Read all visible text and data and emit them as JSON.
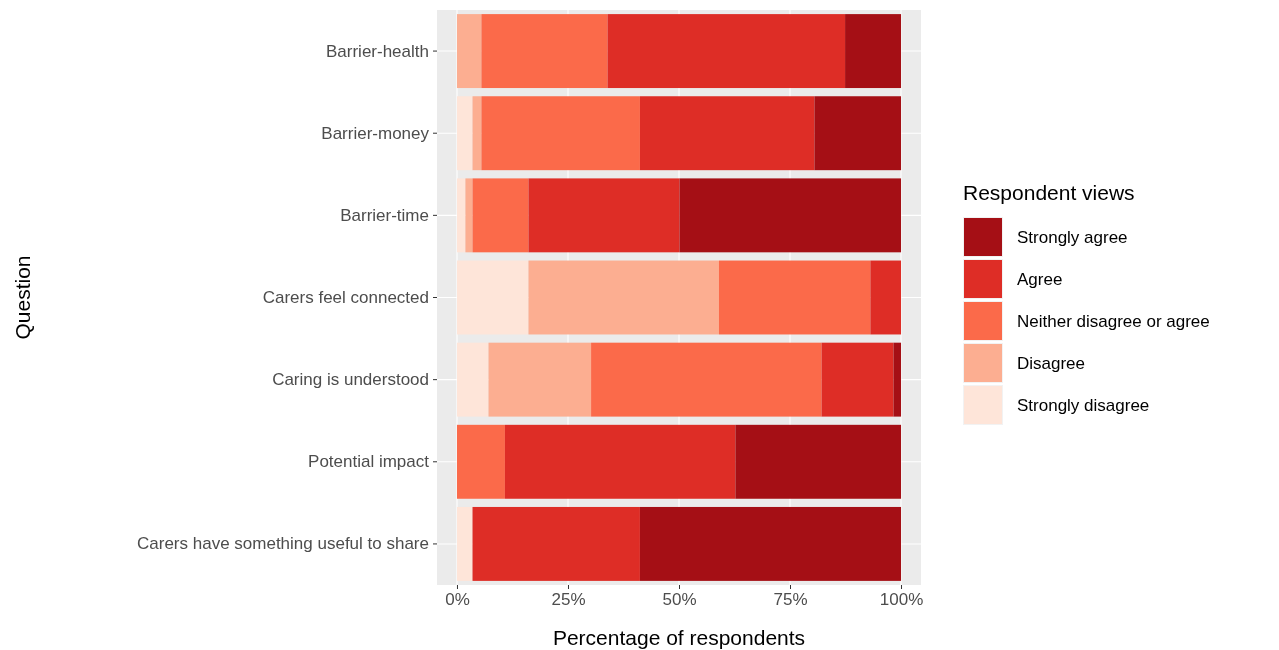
{
  "chart_data": {
    "type": "bar",
    "orientation": "horizontal",
    "stacked": true,
    "categories": [
      "Barrier-health",
      "Barrier-money",
      "Barrier-time",
      "Carers feel connected",
      "Caring is understood",
      "Potential impact",
      "Carers have something useful to share"
    ],
    "series": [
      {
        "name": "Strongly disagree",
        "color": "#fee5d9",
        "values": [
          0,
          3.5,
          1.9,
          16.1,
          7.1,
          0,
          3.5
        ]
      },
      {
        "name": "Disagree",
        "color": "#fcae91",
        "values": [
          5.5,
          2.0,
          1.6,
          42.9,
          23.1,
          0,
          0
        ]
      },
      {
        "name": "Neither disagree or agree",
        "color": "#fb6a4a",
        "values": [
          28.4,
          35.7,
          12.6,
          34.1,
          51.9,
          10.8,
          0
        ]
      },
      {
        "name": "Agree",
        "color": "#de2d26",
        "values": [
          53.5,
          39.3,
          34.0,
          6.9,
          16.2,
          51.9,
          37.7
        ]
      },
      {
        "name": "Strongly agree",
        "color": "#a50f15",
        "values": [
          12.6,
          19.5,
          49.9,
          0,
          1.7,
          37.3,
          58.8
        ]
      }
    ],
    "xlim": [
      -4.5,
      104.5
    ],
    "xticks": [
      {
        "value": 0,
        "label": "0%"
      },
      {
        "value": 25,
        "label": "25%"
      },
      {
        "value": 50,
        "label": "50%"
      },
      {
        "value": 75,
        "label": "75%"
      },
      {
        "value": 100,
        "label": "100%"
      }
    ],
    "xlabel": "Percentage of respondents",
    "ylabel": "Question",
    "legend_title": "Respondent views",
    "legend": "right",
    "grid": true
  }
}
